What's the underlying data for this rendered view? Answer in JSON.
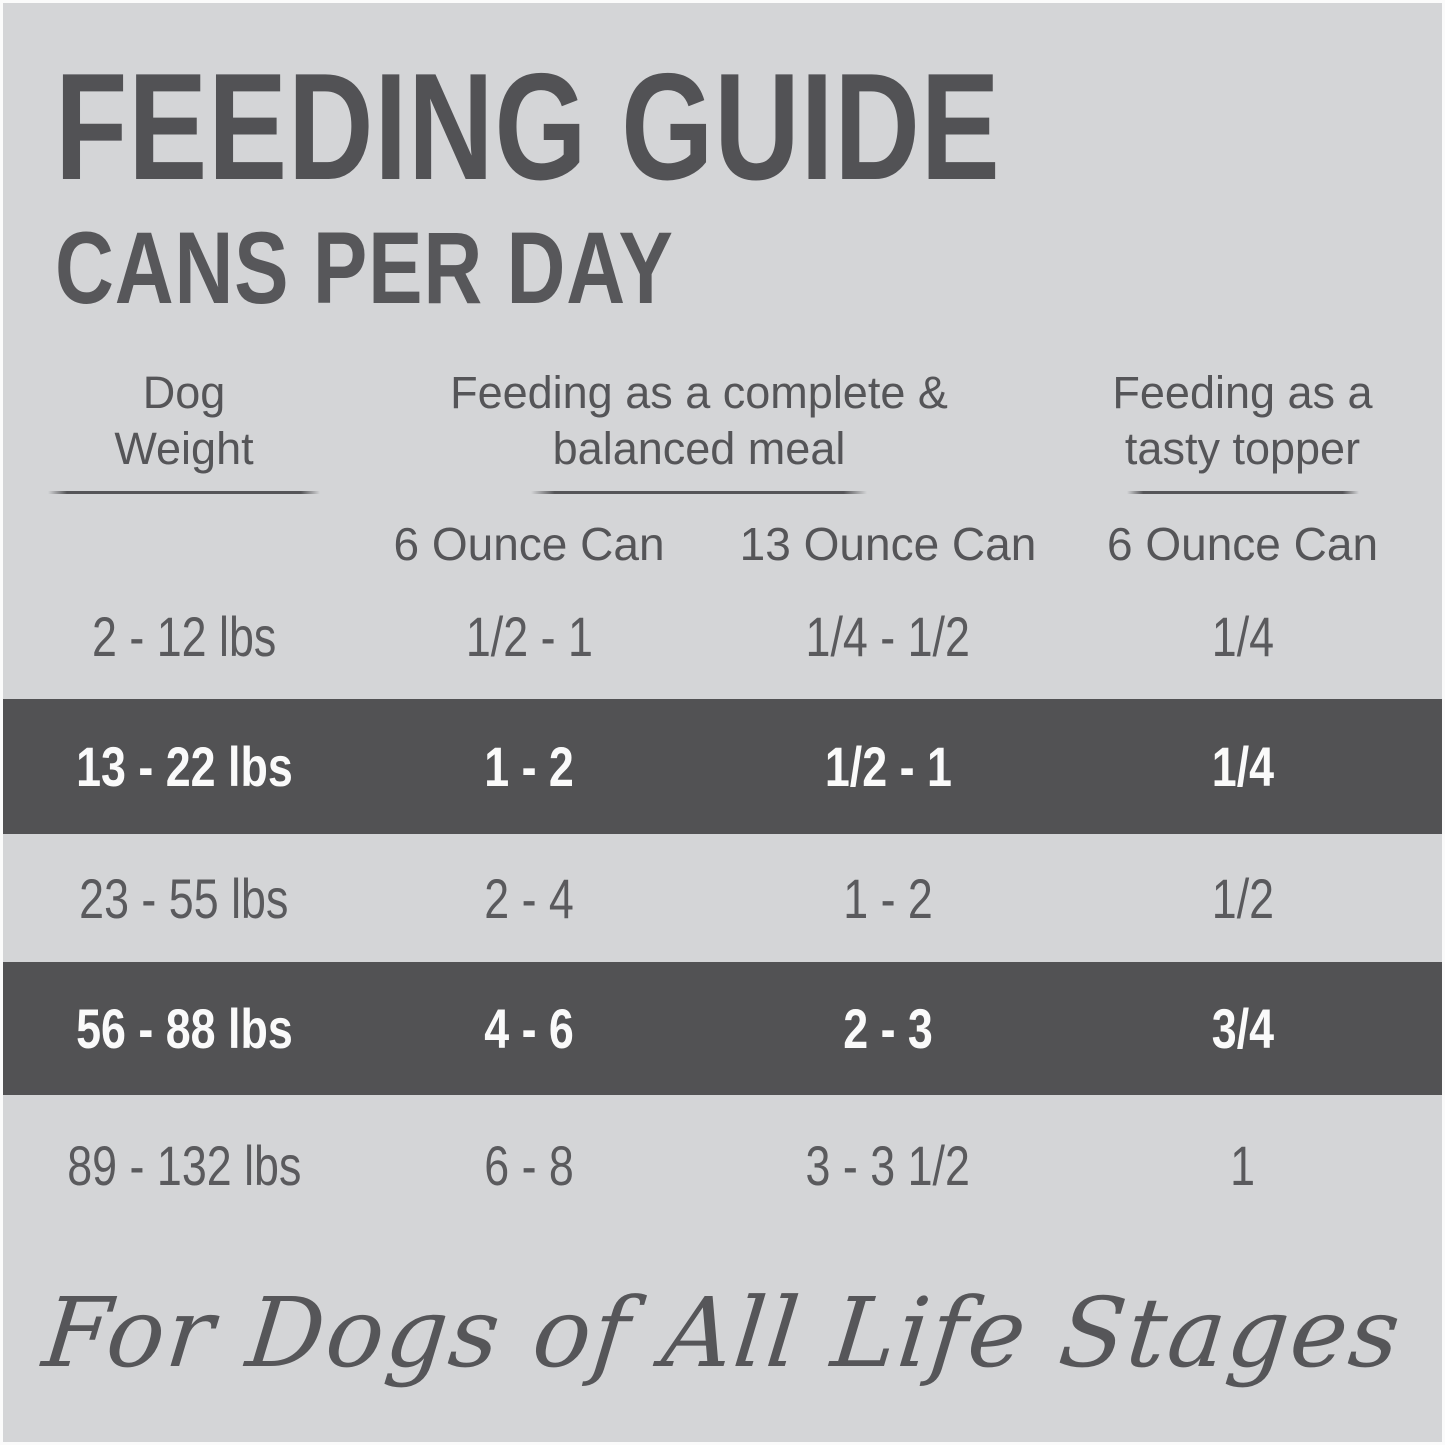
{
  "header": {
    "title": "FEEDING GUIDE",
    "subtitle": "CANS PER DAY"
  },
  "table": {
    "groups": [
      {
        "label": "Dog\nWeight"
      },
      {
        "label": "Feeding as a complete &\nbalanced meal"
      },
      {
        "label": "Feeding as a\ntasty topper"
      }
    ],
    "subheaders": [
      "",
      "6 Ounce Can",
      "13 Ounce Can",
      "6 Ounce Can"
    ],
    "rows": [
      {
        "weight": "2 - 12 lbs",
        "meal_6oz": "1/2 - 1",
        "meal_13oz": "1/4 - 1/2",
        "topper_6oz": "1/4",
        "highlight": false
      },
      {
        "weight": "13 - 22 lbs",
        "meal_6oz": "1 - 2",
        "meal_13oz": "1/2 - 1",
        "topper_6oz": "1/4",
        "highlight": true
      },
      {
        "weight": "23 - 55 lbs",
        "meal_6oz": "2 - 4",
        "meal_13oz": "1 - 2",
        "topper_6oz": "1/2",
        "highlight": false
      },
      {
        "weight": "56 - 88 lbs",
        "meal_6oz": "4 - 6",
        "meal_13oz": "2 - 3",
        "topper_6oz": "3/4",
        "highlight": true
      },
      {
        "weight": "89 - 132 lbs",
        "meal_6oz": "6 - 8",
        "meal_13oz": "3 - 3 1/2",
        "topper_6oz": "1",
        "highlight": false
      }
    ]
  },
  "footer": {
    "script_text": "For Dogs of All Life Stages"
  },
  "colors": {
    "background": "#d4d5d7",
    "highlight_band": "#525254",
    "text": "#57575a",
    "band_text": "#fafafa",
    "border": "#fbfbfb"
  }
}
